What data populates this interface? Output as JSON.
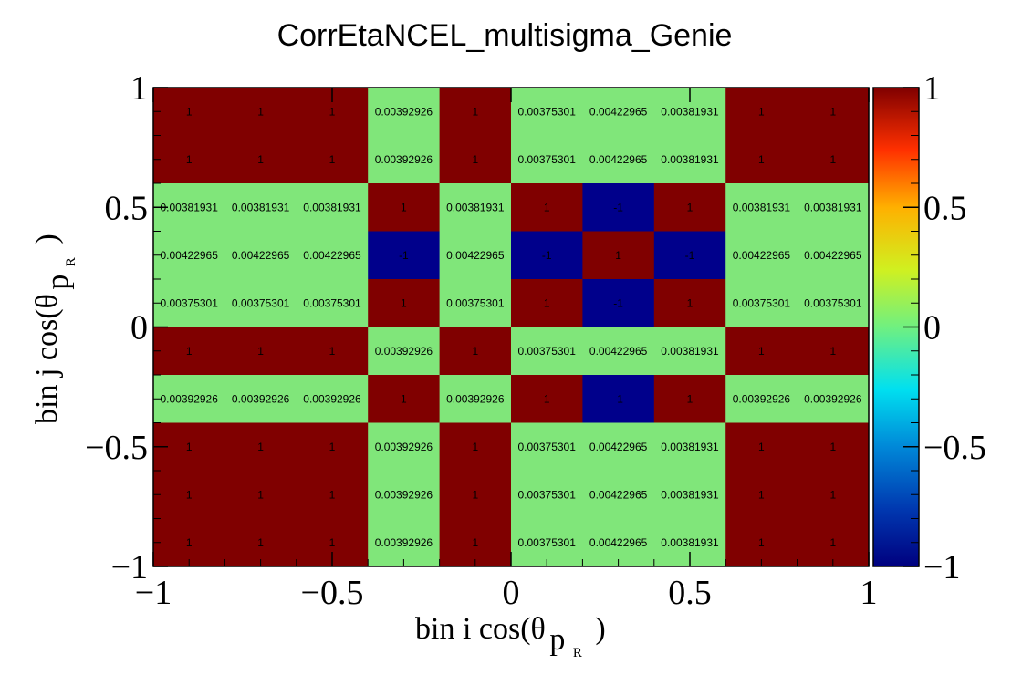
{
  "chart_data": {
    "type": "heatmap",
    "title": "CorrEtaNCEL_multisigma_Genie",
    "xlabel": "bin i cos(θ",
    "ylabel": "bin j cos(θ",
    "axis_label_subscript": "p",
    "axis_label_subsubscript": "R",
    "axis_label_close": ")",
    "x_edges": [
      -1,
      -0.8,
      -0.6,
      -0.4,
      -0.2,
      0,
      0.2,
      0.4,
      0.6,
      0.8,
      1
    ],
    "y_edges": [
      -1,
      -0.8,
      -0.6,
      -0.4,
      -0.2,
      0,
      0.2,
      0.4,
      0.6,
      0.8,
      1
    ],
    "xlim": [
      -1,
      1
    ],
    "ylim": [
      -1,
      1
    ],
    "zlim": [
      -1,
      1
    ],
    "x_ticks": [
      "−1",
      "−0.5",
      "0",
      "0.5",
      "1"
    ],
    "y_ticks": [
      "−1",
      "−0.5",
      "0",
      "0.5",
      "1"
    ],
    "z_ticks": [
      "−1",
      "−0.5",
      "0",
      "0.5",
      "1"
    ],
    "x_tick_values": [
      -1,
      -0.5,
      0,
      0.5,
      1
    ],
    "y_tick_values": [
      -1,
      -0.5,
      0,
      0.5,
      1
    ],
    "z_tick_values": [
      -1,
      -0.5,
      0,
      0.5,
      1
    ],
    "rows_top_to_bottom": [
      [
        "1",
        "1",
        "1",
        "0.00392926",
        "1",
        "0.00375301",
        "0.00422965",
        "0.00381931",
        "1",
        "1"
      ],
      [
        "1",
        "1",
        "1",
        "0.00392926",
        "1",
        "0.00375301",
        "0.00422965",
        "0.00381931",
        "1",
        "1"
      ],
      [
        "0.00381931",
        "0.00381931",
        "0.00381931",
        "1",
        "0.00381931",
        "1",
        "-1",
        "1",
        "0.00381931",
        "0.00381931"
      ],
      [
        "0.00422965",
        "0.00422965",
        "0.00422965",
        "-1",
        "0.00422965",
        "-1",
        "1",
        "-1",
        "0.00422965",
        "0.00422965"
      ],
      [
        "0.00375301",
        "0.00375301",
        "0.00375301",
        "1",
        "0.00375301",
        "1",
        "-1",
        "1",
        "0.00375301",
        "0.00375301"
      ],
      [
        "1",
        "1",
        "1",
        "0.00392926",
        "1",
        "0.00375301",
        "0.00422965",
        "0.00381931",
        "1",
        "1"
      ],
      [
        "0.00392926",
        "0.00392926",
        "0.00392926",
        "1",
        "0.00392926",
        "1",
        "-1",
        "1",
        "0.00392926",
        "0.00392926"
      ],
      [
        "1",
        "1",
        "1",
        "0.00392926",
        "1",
        "0.00375301",
        "0.00422965",
        "0.00381931",
        "1",
        "1"
      ],
      [
        "1",
        "1",
        "1",
        "0.00392926",
        "1",
        "0.00375301",
        "0.00422965",
        "0.00381931",
        "1",
        "1"
      ],
      [
        "1",
        "1",
        "1",
        "0.00392926",
        "1",
        "0.00375301",
        "0.00422965",
        "0.00381931",
        "1",
        "1"
      ]
    ],
    "colors": {
      "high": "#800000",
      "zero": "#80e67a",
      "low": "#00008b"
    }
  }
}
